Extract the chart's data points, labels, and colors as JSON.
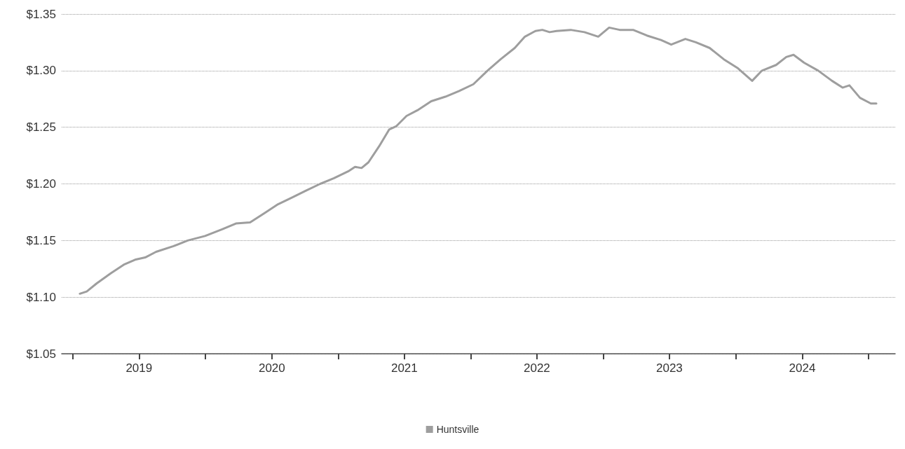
{
  "chart_data": {
    "type": "line",
    "x": [
      "2019-01-20",
      "2019-02-08",
      "2019-03-07",
      "2019-04-15",
      "2019-05-23",
      "2019-06-21",
      "2019-07-19",
      "2019-08-18",
      "2019-10-05",
      "2019-11-13",
      "2019-12-31",
      "2020-02-17",
      "2020-03-25",
      "2020-05-03",
      "2020-06-11",
      "2020-07-19",
      "2020-08-27",
      "2020-10-04",
      "2020-11-12",
      "2020-12-20",
      "2021-01-28",
      "2021-02-16",
      "2021-03-06",
      "2021-03-25",
      "2021-04-23",
      "2021-05-21",
      "2021-06-10",
      "2021-07-08",
      "2021-08-07",
      "2021-09-14",
      "2021-10-23",
      "2021-11-30",
      "2022-01-08",
      "2022-02-16",
      "2022-03-24",
      "2022-05-02",
      "2022-05-30",
      "2022-06-28",
      "2022-07-17",
      "2022-08-06",
      "2022-08-25",
      "2022-10-03",
      "2022-11-10",
      "2022-12-18",
      "2023-01-17",
      "2023-02-15",
      "2023-03-24",
      "2023-05-01",
      "2023-06-09",
      "2023-07-07",
      "2023-08-15",
      "2023-09-13",
      "2023-10-21",
      "2023-11-29",
      "2024-01-07",
      "2024-02-15",
      "2024-03-13",
      "2024-04-21",
      "2024-05-19",
      "2024-06-08",
      "2024-07-07",
      "2024-08-15",
      "2024-09-22",
      "2024-10-21",
      "2024-11-09",
      "2024-12-08",
      "2025-01-07",
      "2025-01-22"
    ],
    "series": [
      {
        "name": "Huntsville",
        "color": "#9e9e9e",
        "values": [
          1.103,
          1.105,
          1.112,
          1.121,
          1.129,
          1.133,
          1.135,
          1.14,
          1.145,
          1.15,
          1.154,
          1.16,
          1.165,
          1.166,
          1.174,
          1.182,
          1.188,
          1.194,
          1.2,
          1.205,
          1.211,
          1.215,
          1.214,
          1.219,
          1.233,
          1.248,
          1.251,
          1.26,
          1.265,
          1.273,
          1.277,
          1.282,
          1.288,
          1.3,
          1.31,
          1.32,
          1.33,
          1.335,
          1.336,
          1.334,
          1.335,
          1.336,
          1.334,
          1.33,
          1.338,
          1.336,
          1.336,
          1.331,
          1.327,
          1.323,
          1.328,
          1.325,
          1.32,
          1.31,
          1.302,
          1.291,
          1.3,
          1.305,
          1.312,
          1.314,
          1.307,
          1.3,
          1.291,
          1.285,
          1.287,
          1.276,
          1.271,
          1.271
        ]
      }
    ],
    "xlim": [
      "2018-12-01",
      "2025-03-15"
    ],
    "xticks": [
      {
        "value": "2019-01-01",
        "label": null
      },
      {
        "value": "2019-07-02",
        "label": "2019"
      },
      {
        "value": "2020-01-01",
        "label": null
      },
      {
        "value": "2020-07-02",
        "label": "2020"
      },
      {
        "value": "2021-01-01",
        "label": null
      },
      {
        "value": "2021-07-02",
        "label": "2021"
      },
      {
        "value": "2022-01-01",
        "label": null
      },
      {
        "value": "2022-07-02",
        "label": "2022"
      },
      {
        "value": "2023-01-01",
        "label": null
      },
      {
        "value": "2023-07-02",
        "label": "2023"
      },
      {
        "value": "2024-01-01",
        "label": null
      },
      {
        "value": "2024-07-02",
        "label": "2024"
      },
      {
        "value": "2025-01-01",
        "label": null
      }
    ],
    "ylim": [
      1.05,
      1.35
    ],
    "yticks": [
      {
        "value": 1.05,
        "label": "$1.05"
      },
      {
        "value": 1.1,
        "label": "$1.10"
      },
      {
        "value": 1.15,
        "label": "$1.15"
      },
      {
        "value": 1.2,
        "label": "$1.20"
      },
      {
        "value": 1.25,
        "label": "$1.25"
      },
      {
        "value": 1.3,
        "label": "$1.30"
      },
      {
        "value": 1.35,
        "label": "$1.35"
      }
    ],
    "grid": "y",
    "legend": "bottom",
    "marker": "none",
    "line_style": "solid"
  }
}
